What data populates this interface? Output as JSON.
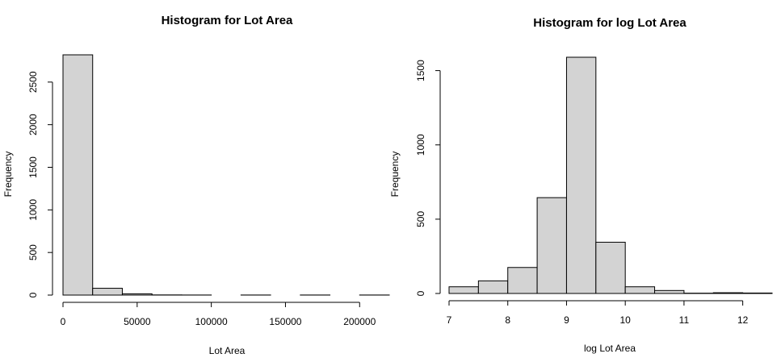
{
  "chart_data": [
    {
      "type": "bar",
      "title": "Histogram for Lot Area",
      "xlabel": "Lot Area",
      "ylabel": "Frequency",
      "bin_edges": [
        0,
        20000,
        40000,
        60000,
        80000,
        100000,
        120000,
        140000,
        160000,
        180000,
        200000,
        220000
      ],
      "values": [
        2820,
        80,
        15,
        2,
        1,
        0,
        1,
        0,
        1,
        0,
        1
      ],
      "xlim": [
        0,
        220000
      ],
      "ylim": [
        0,
        2820
      ],
      "x_ticks": [
        0,
        50000,
        100000,
        150000,
        200000
      ],
      "x_tick_labels": [
        "0",
        "50000",
        "100000",
        "150000",
        "200000"
      ],
      "y_ticks": [
        0,
        500,
        1000,
        1500,
        2000,
        2500
      ],
      "y_tick_labels": [
        "0",
        "500",
        "1000",
        "1500",
        "2000",
        "2500"
      ],
      "grid": false
    },
    {
      "type": "bar",
      "title": "Histogram for log Lot Area",
      "xlabel": "log Lot Area",
      "ylabel": "Frequency",
      "bin_edges": [
        7,
        7.5,
        8,
        8.5,
        9,
        9.5,
        10,
        10.5,
        11,
        11.5,
        12,
        12.5
      ],
      "values": [
        45,
        85,
        175,
        645,
        1590,
        345,
        45,
        20,
        2,
        5,
        3
      ],
      "xlim": [
        7,
        12.5
      ],
      "ylim": [
        0,
        1590
      ],
      "x_ticks": [
        7,
        8,
        9,
        10,
        11,
        12
      ],
      "x_tick_labels": [
        "7",
        "8",
        "9",
        "10",
        "11",
        "12"
      ],
      "y_ticks": [
        0,
        500,
        1000,
        1500
      ],
      "y_tick_labels": [
        "0",
        "500",
        "1000",
        "1500"
      ],
      "grid": false
    }
  ]
}
